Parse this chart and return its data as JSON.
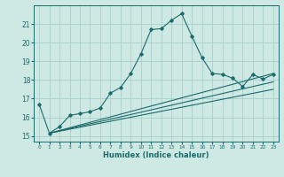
{
  "xlabel": "Humidex (Indice chaleur)",
  "ylabel": "",
  "bg_color": "#cee8e4",
  "grid_color": "#aacfcc",
  "line_color": "#1a6b6b",
  "xlim": [
    -0.5,
    23.5
  ],
  "ylim": [
    14.7,
    22.0
  ],
  "yticks": [
    15,
    16,
    17,
    18,
    19,
    20,
    21
  ],
  "xticks": [
    0,
    1,
    2,
    3,
    4,
    5,
    6,
    7,
    8,
    9,
    10,
    11,
    12,
    13,
    14,
    15,
    16,
    17,
    18,
    19,
    20,
    21,
    22,
    23
  ],
  "main_line_x": [
    0,
    1,
    2,
    3,
    4,
    5,
    6,
    7,
    8,
    9,
    10,
    11,
    12,
    13,
    14,
    15,
    16,
    17,
    18,
    19,
    20,
    21,
    22,
    23
  ],
  "main_line_y": [
    16.7,
    15.15,
    15.5,
    16.1,
    16.2,
    16.3,
    16.5,
    17.3,
    17.6,
    18.35,
    19.4,
    20.7,
    20.75,
    21.2,
    21.55,
    20.35,
    19.2,
    18.35,
    18.3,
    18.1,
    17.65,
    18.3,
    18.05,
    18.3
  ],
  "straight_line1_x": [
    1,
    23
  ],
  "straight_line1_y": [
    15.15,
    18.35
  ],
  "straight_line2_x": [
    1,
    23
  ],
  "straight_line2_y": [
    15.15,
    17.9
  ],
  "straight_line3_x": [
    1,
    23
  ],
  "straight_line3_y": [
    15.15,
    17.5
  ]
}
